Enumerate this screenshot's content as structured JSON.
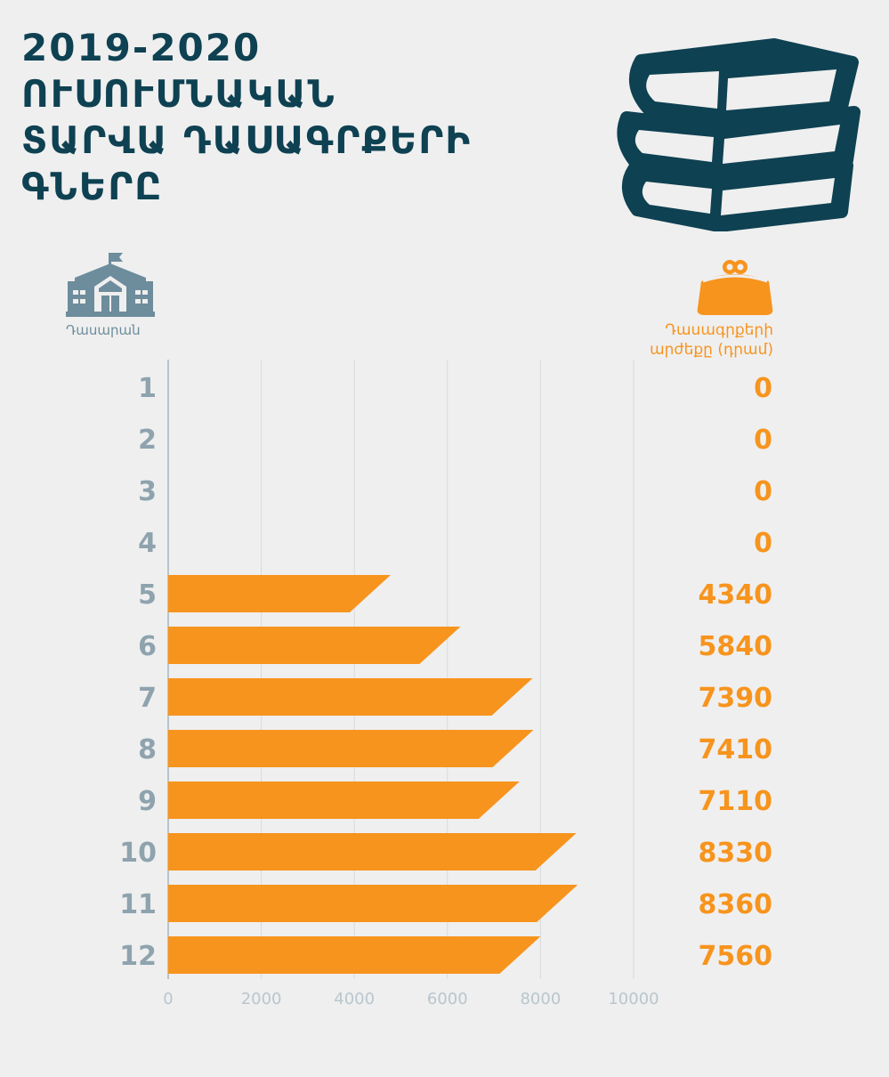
{
  "title_lines": [
    "2019-2020",
    "ՈՒՍՈՒՄՆԱԿԱՆ",
    "ՏԱՐՎԱ ԴԱՍԱԳՐՔԵՐԻ",
    "ԳՆԵՐԸ"
  ],
  "left_header": "Դասարան",
  "right_header_lines": [
    "Դասագրքերի",
    "արժեքը (դրամ)"
  ],
  "colors": {
    "bar": "#f7941d",
    "title": "#0e4152",
    "category": "#8ea3ae",
    "axis": "#b9c6cd"
  },
  "icons": {
    "books": "books-stack-icon",
    "school": "school-building-icon",
    "purse": "purse-icon"
  },
  "chart_data": {
    "type": "bar",
    "orientation": "horizontal",
    "categories": [
      "1",
      "2",
      "3",
      "4",
      "5",
      "6",
      "7",
      "8",
      "9",
      "10",
      "11",
      "12"
    ],
    "values": [
      0,
      0,
      0,
      0,
      4340,
      5840,
      7390,
      7410,
      7110,
      8330,
      8360,
      7560
    ],
    "value_labels": [
      "0",
      "0",
      "0",
      "0",
      "4340",
      "5840",
      "7390",
      "7410",
      "7110",
      "8330",
      "8360",
      "7560"
    ],
    "xlim": [
      0,
      10000
    ],
    "xticks": [
      "0",
      "2000",
      "4000",
      "6000",
      "8000",
      "10000"
    ],
    "grid": true
  }
}
